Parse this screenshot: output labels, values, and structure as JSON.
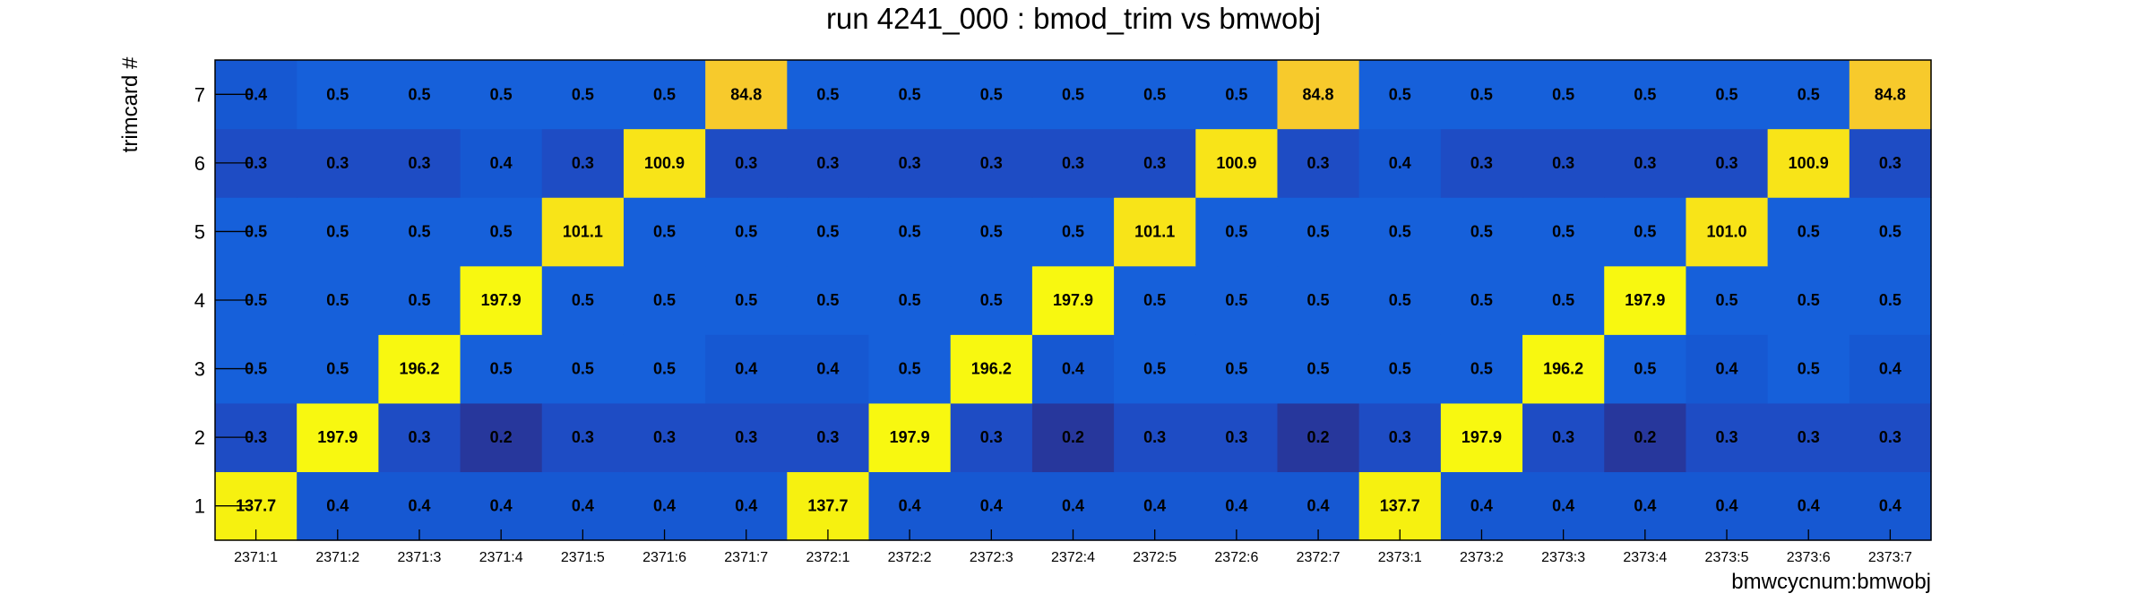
{
  "chart_data": {
    "type": "heatmap",
    "title": "run 4241_000 : bmod_trim vs bmwobj",
    "xlabel": "bmwcycnum:bmwobj",
    "ylabel": "trimcard #",
    "x_categories": [
      "2371:1",
      "2371:2",
      "2371:3",
      "2371:4",
      "2371:5",
      "2371:6",
      "2371:7",
      "2372:1",
      "2372:2",
      "2372:3",
      "2372:4",
      "2372:5",
      "2372:6",
      "2372:7",
      "2373:1",
      "2373:2",
      "2373:3",
      "2373:4",
      "2373:5",
      "2373:6",
      "2373:7"
    ],
    "y_categories": [
      "1",
      "2",
      "3",
      "4",
      "5",
      "6",
      "7"
    ],
    "values": [
      [
        "137.7",
        "0.4",
        "0.4",
        "0.4",
        "0.4",
        "0.4",
        "0.4",
        "137.7",
        "0.4",
        "0.4",
        "0.4",
        "0.4",
        "0.4",
        "0.4",
        "137.7",
        "0.4",
        "0.4",
        "0.4",
        "0.4",
        "0.4",
        "0.4"
      ],
      [
        "0.3",
        "197.9",
        "0.3",
        "0.2",
        "0.3",
        "0.3",
        "0.3",
        "0.3",
        "197.9",
        "0.3",
        "0.2",
        "0.3",
        "0.3",
        "0.2",
        "0.3",
        "197.9",
        "0.3",
        "0.2",
        "0.3",
        "0.3",
        "0.3"
      ],
      [
        "0.5",
        "0.5",
        "196.2",
        "0.5",
        "0.5",
        "0.5",
        "0.4",
        "0.4",
        "0.5",
        "196.2",
        "0.4",
        "0.5",
        "0.5",
        "0.5",
        "0.5",
        "0.5",
        "196.2",
        "0.5",
        "0.4",
        "0.5",
        "0.4"
      ],
      [
        "0.5",
        "0.5",
        "0.5",
        "197.9",
        "0.5",
        "0.5",
        "0.5",
        "0.5",
        "0.5",
        "0.5",
        "197.9",
        "0.5",
        "0.5",
        "0.5",
        "0.5",
        "0.5",
        "0.5",
        "197.9",
        "0.5",
        "0.5",
        "0.5"
      ],
      [
        "0.5",
        "0.5",
        "0.5",
        "0.5",
        "101.1",
        "0.5",
        "0.5",
        "0.5",
        "0.5",
        "0.5",
        "0.5",
        "101.1",
        "0.5",
        "0.5",
        "0.5",
        "0.5",
        "0.5",
        "0.5",
        "101.0",
        "0.5",
        "0.5"
      ],
      [
        "0.3",
        "0.3",
        "0.3",
        "0.4",
        "0.3",
        "100.9",
        "0.3",
        "0.3",
        "0.3",
        "0.3",
        "0.3",
        "0.3",
        "100.9",
        "0.3",
        "0.4",
        "0.3",
        "0.3",
        "0.3",
        "0.3",
        "100.9",
        "0.3"
      ],
      [
        "0.4",
        "0.5",
        "0.5",
        "0.5",
        "0.5",
        "0.5",
        "84.8",
        "0.5",
        "0.5",
        "0.5",
        "0.5",
        "0.5",
        "0.5",
        "84.8",
        "0.5",
        "0.5",
        "0.5",
        "0.5",
        "0.5",
        "0.5",
        "84.8"
      ]
    ],
    "colors": {
      "low_0.2": "#27379c",
      "low_0.3": "#1e4cc4",
      "low_0.4": "#1658d2",
      "low_0.5": "#1660da",
      "high_84.8": "#f7ca2c",
      "high_100": "#f8e418",
      "high_137": "#f6f110",
      "high_196": "#f8f810"
    },
    "grid": false,
    "legend": "none"
  }
}
